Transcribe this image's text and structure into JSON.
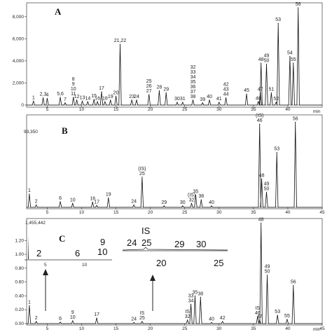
{
  "chart_data": [
    {
      "type": "line",
      "panel_label": "A",
      "xlabel": "min",
      "x_ticks": [
        "5",
        "10",
        "15",
        "20",
        "25",
        "30",
        "35",
        "40"
      ],
      "y_ticks": [
        "0",
        "2,000",
        "4,000",
        "6,000",
        "8,000"
      ],
      "xlim": [
        2,
        45
      ],
      "ylim": [
        0,
        9000
      ],
      "peaks": [
        {
          "label": "1",
          "x": 3.0,
          "y": 350
        },
        {
          "label": "2,3",
          "x": 4.4,
          "y": 650
        },
        {
          "label": "4",
          "x": 5.0,
          "y": 600
        },
        {
          "label": "5,6",
          "x": 6.9,
          "y": 700
        },
        {
          "label": "7",
          "x": 7.6,
          "y": 200
        },
        {
          "label": "8\n9\n10\n11",
          "x": 8.8,
          "y": 700
        },
        {
          "label": "12",
          "x": 9.3,
          "y": 450
        },
        {
          "label": "13",
          "x": 10.1,
          "y": 350
        },
        {
          "label": "14",
          "x": 10.9,
          "y": 300
        },
        {
          "label": "15",
          "x": 11.8,
          "y": 500
        },
        {
          "label": "16",
          "x": 12.3,
          "y": 300
        },
        {
          "label": "17",
          "x": 12.9,
          "y": 1200
        },
        {
          "label": "18",
          "x": 13.4,
          "y": 300
        },
        {
          "label": "19",
          "x": 14.2,
          "y": 450
        },
        {
          "label": "20",
          "x": 15.0,
          "y": 800
        },
        {
          "label": "21,22",
          "x": 15.6,
          "y": 5500
        },
        {
          "label": "23",
          "x": 17.3,
          "y": 450
        },
        {
          "label": "24",
          "x": 18.0,
          "y": 450
        },
        {
          "label": "25\n26\n27",
          "x": 19.8,
          "y": 950
        },
        {
          "label": "28",
          "x": 21.3,
          "y": 1300
        },
        {
          "label": "29",
          "x": 22.3,
          "y": 1100
        },
        {
          "label": "30",
          "x": 23.9,
          "y": 250
        },
        {
          "label": "31",
          "x": 24.7,
          "y": 250
        },
        {
          "label": "32\n33\n34\n35\n36\n37\n38",
          "x": 26.2,
          "y": 450
        },
        {
          "label": "39",
          "x": 27.6,
          "y": 200
        },
        {
          "label": "40",
          "x": 28.6,
          "y": 450
        },
        {
          "label": "41",
          "x": 30.0,
          "y": 250
        },
        {
          "label": "42\n43\n44",
          "x": 31.0,
          "y": 650
        },
        {
          "label": "45",
          "x": 34.0,
          "y": 1000
        },
        {
          "label": "46",
          "x": 35.7,
          "y": 300
        },
        {
          "label": "47",
          "x": 36.0,
          "y": 1100
        },
        {
          "label": "48",
          "x": 36.1,
          "y": 3800
        },
        {
          "label": "49\n50",
          "x": 36.9,
          "y": 3700
        },
        {
          "label": "51",
          "x": 37.6,
          "y": 1100
        },
        {
          "label": "52",
          "x": 38.3,
          "y": 250
        },
        {
          "label": "53",
          "x": 38.6,
          "y": 7400
        },
        {
          "label": "54",
          "x": 40.3,
          "y": 4400
        },
        {
          "label": "55",
          "x": 40.8,
          "y": 3800
        },
        {
          "label": "56",
          "x": 41.5,
          "y": 8800
        }
      ]
    },
    {
      "type": "line",
      "panel_label": "B",
      "top_value": "93,350",
      "x_ticks": [
        "5",
        "10",
        "15",
        "20",
        "25",
        "30",
        "35",
        "40",
        "45"
      ],
      "xlim": [
        2,
        45
      ],
      "ylim": [
        0,
        93350
      ],
      "peaks": [
        {
          "label": "1",
          "x": 2.4,
          "y": 14000
        },
        {
          "label": "2",
          "x": 3.4,
          "y": 2500
        },
        {
          "label": "6",
          "x": 6.9,
          "y": 6000
        },
        {
          "label": "10",
          "x": 8.7,
          "y": 4000
        },
        {
          "label": "16",
          "x": 11.6,
          "y": 5500
        },
        {
          "label": "17",
          "x": 12.2,
          "y": 2000
        },
        {
          "label": "19",
          "x": 13.9,
          "y": 10000
        },
        {
          "label": "24",
          "x": 17.6,
          "y": 2500
        },
        {
          "label": "(IS)\n25",
          "x": 18.8,
          "y": 32000
        },
        {
          "label": "29",
          "x": 22.0,
          "y": 1500
        },
        {
          "label": "30",
          "x": 24.7,
          "y": 1500
        },
        {
          "label": "(IS)\n32",
          "x": 26.0,
          "y": 4000
        },
        {
          "label": "35",
          "x": 26.6,
          "y": 13000
        },
        {
          "label": "38",
          "x": 27.4,
          "y": 8000
        },
        {
          "label": "40",
          "x": 28.9,
          "y": 1500
        },
        {
          "label": "(IS)\n46",
          "x": 35.9,
          "y": 88000
        },
        {
          "label": "48",
          "x": 36.2,
          "y": 30000
        },
        {
          "label": "49\n50",
          "x": 36.9,
          "y": 16000
        },
        {
          "label": "53",
          "x": 38.4,
          "y": 58000
        },
        {
          "label": "56",
          "x": 41.1,
          "y": 90000
        }
      ]
    },
    {
      "type": "line",
      "panel_label": "C",
      "top_value": "1,455,442",
      "xlabel": "min",
      "x_ticks": [
        "5",
        "10",
        "15",
        "20",
        "25",
        "30",
        "35",
        "40",
        "45"
      ],
      "y_ticks": [
        "0.00",
        "0.20",
        "0.40",
        "0.60",
        "0.80",
        "1.00",
        "1.20"
      ],
      "y_tick_values": [
        0,
        0.2,
        0.4,
        0.6,
        0.8,
        1.0,
        1.2
      ],
      "xlim": [
        2,
        45
      ],
      "ylim": [
        0,
        1.455442
      ],
      "peaks": [
        {
          "label": "1",
          "x": 2.4,
          "y": 0.26
        },
        {
          "label": "2",
          "x": 3.4,
          "y": 0.03
        },
        {
          "label": "6",
          "x": 6.9,
          "y": 0.02
        },
        {
          "label": "9\n10",
          "x": 8.7,
          "y": 0.04
        },
        {
          "label": "17",
          "x": 12.2,
          "y": 0.08
        },
        {
          "label": "24",
          "x": 17.6,
          "y": 0.015
        },
        {
          "label": "IS\n25",
          "x": 18.8,
          "y": 0.03
        },
        {
          "label": "IS\n32",
          "x": 25.4,
          "y": 0.05
        },
        {
          "label": "33\n34",
          "x": 25.9,
          "y": 0.28
        },
        {
          "label": "35",
          "x": 26.5,
          "y": 0.4
        },
        {
          "label": "38",
          "x": 27.3,
          "y": 0.38
        },
        {
          "label": "40",
          "x": 28.9,
          "y": 0.015
        },
        {
          "label": "42",
          "x": 30.5,
          "y": 0.03
        },
        {
          "label": "IS\n46",
          "x": 35.6,
          "y": 0.1
        },
        {
          "label": "47",
          "x": 35.9,
          "y": 0.05
        },
        {
          "label": "48",
          "x": 36.1,
          "y": 1.45
        },
        {
          "label": "49\n50",
          "x": 37.0,
          "y": 0.7
        },
        {
          "label": "53",
          "x": 38.5,
          "y": 0.12
        },
        {
          "label": "55",
          "x": 39.9,
          "y": 0.06
        },
        {
          "label": "56",
          "x": 40.8,
          "y": 0.55
        }
      ],
      "insets": [
        {
          "labels": [
            "2",
            "6",
            "9",
            "10"
          ],
          "x_ticks": [
            "5",
            "10"
          ]
        },
        {
          "labels": [
            "IS",
            "24",
            "25",
            "29",
            "30"
          ],
          "x_ticks": [
            "20",
            "25"
          ]
        }
      ]
    }
  ]
}
